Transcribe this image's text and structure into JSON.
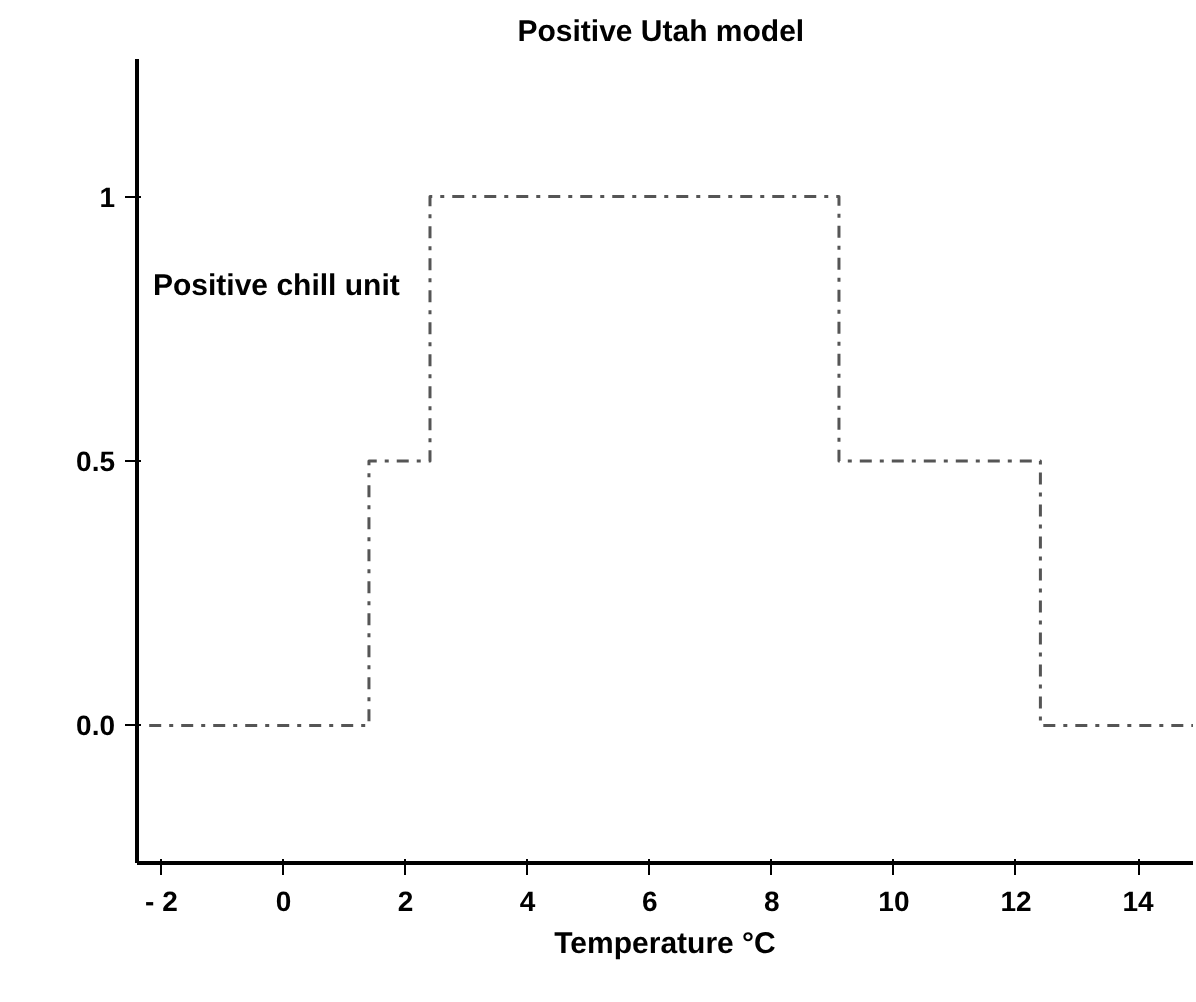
{
  "chart_data": {
    "type": "step",
    "title": "Positive Utah  model",
    "xlabel": "Temperature °C",
    "ylabel": "Positive chill unit",
    "x": [
      -2.2,
      1.4,
      2.4,
      9.1,
      12.4,
      14.9
    ],
    "series": [
      {
        "color": "#555555",
        "values": [
          0,
          0.5,
          1,
          0.5,
          0,
          0
        ]
      }
    ],
    "xlim": [
      -2.4,
      14.9
    ],
    "ylim": [
      -0.26,
      1.26
    ],
    "xticks": [
      {
        "value": -2,
        "label": "- 2"
      },
      0,
      2,
      4,
      6,
      8,
      10,
      12,
      14
    ],
    "yticks": [
      {
        "value": 0,
        "label": "0.0"
      },
      0.5,
      1
    ],
    "line_style": "dashdot",
    "grid": false
  }
}
